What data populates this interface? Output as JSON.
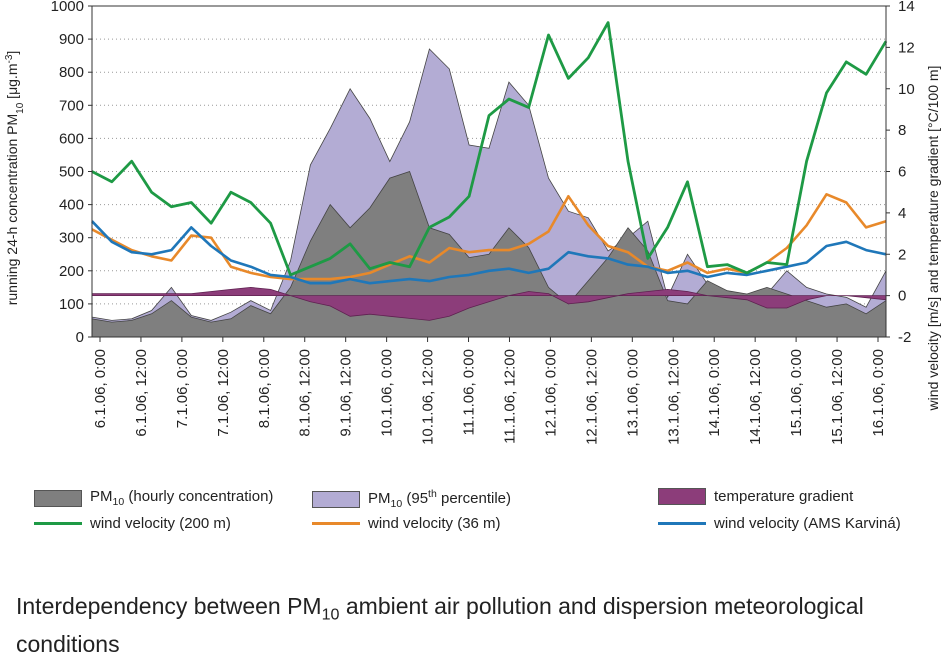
{
  "chart_data": {
    "type": "area",
    "x_ticks": [
      "6.1.06, 0:00",
      "6.1.06, 12:00",
      "7.1.06, 0:00",
      "7.1.06, 12:00",
      "8.1.06, 0:00",
      "8.1.06, 12:00",
      "9.1.06, 12:00",
      "10.1.06, 0:00",
      "10.1.06, 12:00",
      "11.1.06, 0:00",
      "11.1.06, 12:00",
      "12.1.06, 0:00",
      "12.1.06, 12:00",
      "13.1.06, 0:00",
      "13.1.06, 12:00",
      "14.1.06, 0:00",
      "14.1.06, 12:00",
      "15.1.06, 0:00",
      "15.1.06, 12:00",
      "16.1.06, 0:00"
    ],
    "y_left": {
      "ylim": [
        0,
        1000
      ],
      "ticks": [
        "0",
        "100",
        "200",
        "300",
        "400",
        "500",
        "600",
        "700",
        "800",
        "900",
        "1000"
      ],
      "label_parts": [
        "running 24-h concentration PM",
        "10",
        " [μg.m",
        "-3",
        "]"
      ]
    },
    "y_right": {
      "ylim": [
        -2,
        14
      ],
      "ticks": [
        "-2",
        "0",
        "2",
        "4",
        "6",
        "8",
        "10",
        "12",
        "14"
      ],
      "label": "wind velocity [m/s]  and temperature gradient  [°C/100 m]"
    },
    "grid": "horizontal dotted",
    "x_hours": [
      0,
      6,
      12,
      18,
      24,
      30,
      36,
      42,
      48,
      54,
      60,
      66,
      72,
      78,
      84,
      90,
      96,
      102,
      108,
      114,
      120,
      126,
      132,
      138,
      144,
      150,
      156,
      162,
      168,
      174,
      180,
      186,
      192,
      198,
      204,
      210,
      216,
      222,
      228,
      234,
      240
    ],
    "series": [
      {
        "key": "p95",
        "axis": "left",
        "kind": "area",
        "values": [
          60,
          50,
          55,
          80,
          150,
          65,
          50,
          75,
          110,
          80,
          230,
          520,
          630,
          750,
          660,
          530,
          650,
          870,
          810,
          580,
          570,
          770,
          700,
          480,
          380,
          360,
          260,
          300,
          350,
          120,
          250,
          160,
          120,
          120,
          130,
          200,
          150,
          130,
          120,
          90,
          200
        ]
      },
      {
        "key": "hourly",
        "axis": "left",
        "kind": "area",
        "values": [
          55,
          45,
          50,
          70,
          110,
          60,
          45,
          55,
          95,
          70,
          150,
          290,
          400,
          330,
          390,
          480,
          500,
          330,
          310,
          240,
          250,
          330,
          270,
          150,
          100,
          170,
          240,
          330,
          260,
          110,
          100,
          170,
          140,
          130,
          150,
          130,
          110,
          90,
          100,
          70,
          110
        ]
      },
      {
        "key": "temp",
        "axis": "right",
        "kind": "area",
        "values": [
          0.1,
          0.1,
          0.1,
          0.1,
          0.1,
          0.1,
          0.2,
          0.3,
          0.4,
          0.3,
          0,
          -0.3,
          -0.5,
          -1.0,
          -0.9,
          -1.0,
          -1.1,
          -1.2,
          -1.0,
          -0.6,
          -0.3,
          0,
          0.2,
          0.1,
          -0.4,
          -0.3,
          -0.1,
          0.1,
          0.2,
          0.3,
          0.2,
          0,
          -0.1,
          -0.2,
          -0.6,
          -0.6,
          -0.2,
          0,
          0,
          -0.1,
          -0.2
        ]
      },
      {
        "key": "w200",
        "axis": "right",
        "kind": "line",
        "values": [
          6,
          5.5,
          6.5,
          5,
          4.3,
          4.5,
          3.5,
          5,
          4.5,
          3.5,
          1,
          1.4,
          1.8,
          2.5,
          1.3,
          1.6,
          1.4,
          3.3,
          3.8,
          4.8,
          8.7,
          9.5,
          9.1,
          12.6,
          10.5,
          11.5,
          13.2,
          6.5,
          1.8,
          3.3,
          5.5,
          1.4,
          1.5,
          1.1,
          1.6,
          1.5,
          6.5,
          9.8,
          11.3,
          10.7,
          12.3
        ]
      },
      {
        "key": "w36",
        "axis": "right",
        "kind": "line",
        "values": [
          3.2,
          2.7,
          2.2,
          1.9,
          1.7,
          2.9,
          2.8,
          1.4,
          1.1,
          0.9,
          0.8,
          0.8,
          0.8,
          0.9,
          1.1,
          1.5,
          1.9,
          1.6,
          2.3,
          2.1,
          2.2,
          2.2,
          2.5,
          3.1,
          4.8,
          3.4,
          2.4,
          2.1,
          1.4,
          1.2,
          1.6,
          1.1,
          1.3,
          1.1,
          1.6,
          2.3,
          3.4,
          4.9,
          4.5,
          3.3,
          3.6
        ]
      },
      {
        "key": "ams",
        "axis": "right",
        "kind": "line",
        "values": [
          3.6,
          2.6,
          2.1,
          2.0,
          2.2,
          3.3,
          2.4,
          1.7,
          1.4,
          1.0,
          0.9,
          0.6,
          0.6,
          0.8,
          0.6,
          0.7,
          0.8,
          0.7,
          0.9,
          1.0,
          1.2,
          1.3,
          1.1,
          1.3,
          2.1,
          1.9,
          1.8,
          1.5,
          1.4,
          1.1,
          1.2,
          0.9,
          1.1,
          1.0,
          1.2,
          1.4,
          1.6,
          2.4,
          2.6,
          2.2,
          2.0
        ]
      }
    ],
    "colors": {
      "p95": "#b3acd4",
      "hourly": "#7f7f7f",
      "temp": "#8c3d7a",
      "w200": "#1e9a45",
      "w36": "#e8892a",
      "ams": "#1f77b9",
      "stroke": "#444444"
    }
  },
  "legend": {
    "hourly_pre": "PM",
    "hourly_sub": "10",
    "hourly_post": " (hourly concentration)",
    "p95_pre": "PM",
    "p95_sub": "10",
    "p95_mid": " (95",
    "p95_sup": "th",
    "p95_post": " percentile)",
    "temp": "temperature gradient",
    "w200": "wind velocity (200 m)",
    "w36": "wind velocity (36 m)",
    "ams": "wind velocity (AMS Karviná)"
  },
  "caption": {
    "pre": "Interdependency between PM",
    "sub": "10",
    "post": " ambient air pollution and dispersion meteorological conditions"
  }
}
